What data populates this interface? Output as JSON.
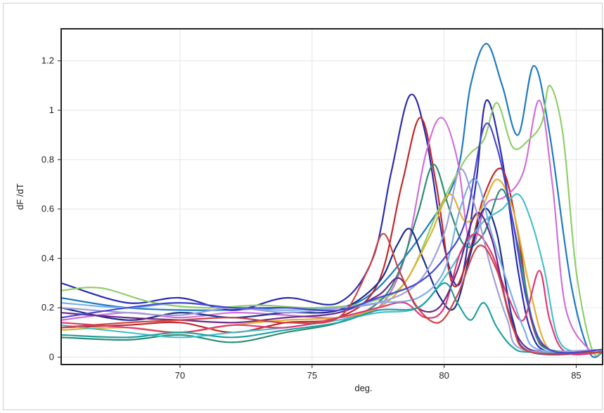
{
  "chart_data": {
    "type": "line",
    "title": "",
    "xlabel": "deg.",
    "ylabel": "dF /dT",
    "xlim": [
      65.5,
      86
    ],
    "ylim": [
      -0.03,
      1.33
    ],
    "xticks": [
      70,
      75,
      80,
      85
    ],
    "yticks": [
      0,
      0.2,
      0.4,
      0.6,
      0.8,
      1,
      1.2
    ],
    "ytick_labels": [
      "0",
      "0.2",
      "0.4",
      "0.6",
      "0.8",
      "1",
      "1.2"
    ],
    "grid": true,
    "legend": "none",
    "series": [
      {
        "color": "#1e7ac2",
        "values": [
          [
            65.5,
            0.24
          ],
          [
            68,
            0.2
          ],
          [
            71,
            0.19
          ],
          [
            74,
            0.2
          ],
          [
            76,
            0.2
          ],
          [
            77.5,
            0.28
          ],
          [
            79.5,
            0.55
          ],
          [
            80.5,
            0.75
          ],
          [
            81,
            1.1
          ],
          [
            81.6,
            1.27
          ],
          [
            82.2,
            1.1
          ],
          [
            82.8,
            0.9
          ],
          [
            83.4,
            1.18
          ],
          [
            84,
            0.9
          ],
          [
            84.8,
            0.3
          ],
          [
            85.5,
            0.02
          ],
          [
            86,
            0.02
          ]
        ]
      },
      {
        "color": "#2b2bb0",
        "values": [
          [
            65.5,
            0.3
          ],
          [
            68,
            0.22
          ],
          [
            70,
            0.24
          ],
          [
            72,
            0.19
          ],
          [
            74,
            0.24
          ],
          [
            76,
            0.22
          ],
          [
            77.3,
            0.4
          ],
          [
            78,
            0.75
          ],
          [
            78.7,
            1.06
          ],
          [
            79.3,
            0.9
          ],
          [
            80,
            0.45
          ],
          [
            80.6,
            0.3
          ],
          [
            81.2,
            0.7
          ],
          [
            81.6,
            1.04
          ],
          [
            82.2,
            0.8
          ],
          [
            82.8,
            0.35
          ],
          [
            83.3,
            0.1
          ],
          [
            84,
            0.02
          ],
          [
            86,
            0.02
          ]
        ]
      },
      {
        "color": "#c0282a",
        "values": [
          [
            65.5,
            0.12
          ],
          [
            68,
            0.13
          ],
          [
            70,
            0.14
          ],
          [
            72,
            0.1
          ],
          [
            74,
            0.14
          ],
          [
            76,
            0.16
          ],
          [
            77.5,
            0.3
          ],
          [
            78.4,
            0.7
          ],
          [
            79.1,
            0.97
          ],
          [
            79.7,
            0.7
          ],
          [
            80.3,
            0.3
          ],
          [
            80.9,
            0.4
          ],
          [
            81.5,
            0.65
          ],
          [
            82.2,
            0.76
          ],
          [
            82.8,
            0.5
          ],
          [
            83.3,
            0.15
          ],
          [
            84,
            0.03
          ],
          [
            86,
            0.03
          ]
        ]
      },
      {
        "color": "#d070d8",
        "values": [
          [
            65.5,
            0.15
          ],
          [
            68,
            0.18
          ],
          [
            70,
            0.16
          ],
          [
            72,
            0.18
          ],
          [
            74,
            0.17
          ],
          [
            76,
            0.16
          ],
          [
            77.5,
            0.2
          ],
          [
            78.5,
            0.4
          ],
          [
            79.3,
            0.82
          ],
          [
            79.9,
            0.97
          ],
          [
            80.5,
            0.8
          ],
          [
            81,
            0.45
          ],
          [
            81.6,
            0.62
          ],
          [
            82.3,
            0.65
          ],
          [
            83,
            0.75
          ],
          [
            83.6,
            1.04
          ],
          [
            84.1,
            0.7
          ],
          [
            84.6,
            0.2
          ],
          [
            85.5,
            0.03
          ],
          [
            86,
            0.03
          ]
        ]
      },
      {
        "color": "#8fcf6a",
        "values": [
          [
            65.5,
            0.27
          ],
          [
            67,
            0.28
          ],
          [
            69,
            0.22
          ],
          [
            71,
            0.2
          ],
          [
            73,
            0.21
          ],
          [
            75,
            0.2
          ],
          [
            77,
            0.22
          ],
          [
            78.5,
            0.3
          ],
          [
            79.8,
            0.6
          ],
          [
            80.8,
            0.8
          ],
          [
            81.5,
            0.88
          ],
          [
            82,
            1.03
          ],
          [
            82.6,
            0.85
          ],
          [
            83.2,
            0.88
          ],
          [
            83.7,
            0.95
          ],
          [
            84,
            1.1
          ],
          [
            84.5,
            0.9
          ],
          [
            85,
            0.35
          ],
          [
            85.6,
            0.03
          ],
          [
            86,
            0.03
          ]
        ]
      },
      {
        "color": "#2c8c74",
        "values": [
          [
            65.5,
            0.08
          ],
          [
            68,
            0.07
          ],
          [
            70,
            0.09
          ],
          [
            72,
            0.06
          ],
          [
            74,
            0.1
          ],
          [
            76,
            0.14
          ],
          [
            77.5,
            0.22
          ],
          [
            78.3,
            0.35
          ],
          [
            79,
            0.58
          ],
          [
            79.6,
            0.78
          ],
          [
            80.2,
            0.6
          ],
          [
            80.8,
            0.45
          ],
          [
            81.5,
            0.5
          ],
          [
            82.2,
            0.68
          ],
          [
            82.8,
            0.45
          ],
          [
            83.4,
            0.12
          ],
          [
            84,
            0.03
          ],
          [
            86,
            0.03
          ]
        ]
      },
      {
        "color": "#1a2f8a",
        "values": [
          [
            65.5,
            0.2
          ],
          [
            68,
            0.15
          ],
          [
            70,
            0.18
          ],
          [
            72,
            0.16
          ],
          [
            74,
            0.18
          ],
          [
            76,
            0.19
          ],
          [
            77.5,
            0.3
          ],
          [
            78.2,
            0.45
          ],
          [
            78.7,
            0.52
          ],
          [
            79.2,
            0.4
          ],
          [
            79.8,
            0.25
          ],
          [
            80.4,
            0.2
          ],
          [
            81,
            0.42
          ],
          [
            81.5,
            0.6
          ],
          [
            82,
            0.5
          ],
          [
            82.6,
            0.15
          ],
          [
            83.3,
            0.02
          ],
          [
            86,
            0.02
          ]
        ]
      },
      {
        "color": "#e0b030",
        "values": [
          [
            65.5,
            0.11
          ],
          [
            68,
            0.12
          ],
          [
            70,
            0.1
          ],
          [
            72,
            0.13
          ],
          [
            74,
            0.15
          ],
          [
            76,
            0.16
          ],
          [
            77.5,
            0.2
          ],
          [
            78.5,
            0.3
          ],
          [
            79.5,
            0.5
          ],
          [
            80.2,
            0.66
          ],
          [
            80.8,
            0.55
          ],
          [
            81.4,
            0.6
          ],
          [
            82,
            0.72
          ],
          [
            82.6,
            0.6
          ],
          [
            83.2,
            0.3
          ],
          [
            83.8,
            0.06
          ],
          [
            84.5,
            0.02
          ],
          [
            86,
            0.02
          ]
        ]
      },
      {
        "color": "#48c0c8",
        "values": [
          [
            65.5,
            0.13
          ],
          [
            68,
            0.1
          ],
          [
            70,
            0.08
          ],
          [
            72,
            0.1
          ],
          [
            74,
            0.12
          ],
          [
            76,
            0.15
          ],
          [
            77.5,
            0.18
          ],
          [
            79,
            0.2
          ],
          [
            80,
            0.32
          ],
          [
            80.8,
            0.45
          ],
          [
            81.5,
            0.55
          ],
          [
            82.2,
            0.6
          ],
          [
            82.8,
            0.66
          ],
          [
            83.3,
            0.55
          ],
          [
            83.8,
            0.35
          ],
          [
            84.3,
            0.08
          ],
          [
            85,
            0.02
          ],
          [
            86,
            0.02
          ]
        ]
      },
      {
        "color": "#e03878",
        "values": [
          [
            65.5,
            0.14
          ],
          [
            68,
            0.12
          ],
          [
            70,
            0.1
          ],
          [
            72,
            0.13
          ],
          [
            74,
            0.12
          ],
          [
            76,
            0.16
          ],
          [
            77.5,
            0.2
          ],
          [
            78.5,
            0.22
          ],
          [
            79.3,
            0.16
          ],
          [
            80,
            0.2
          ],
          [
            80.6,
            0.42
          ],
          [
            81.2,
            0.5
          ],
          [
            81.8,
            0.42
          ],
          [
            82.4,
            0.25
          ],
          [
            83,
            0.15
          ],
          [
            83.6,
            0.35
          ],
          [
            84,
            0.15
          ],
          [
            84.6,
            0.02
          ],
          [
            86,
            0.02
          ]
        ]
      },
      {
        "color": "#6a2888",
        "values": [
          [
            65.5,
            0.18
          ],
          [
            68,
            0.16
          ],
          [
            70,
            0.15
          ],
          [
            72,
            0.14
          ],
          [
            74,
            0.16
          ],
          [
            76,
            0.18
          ],
          [
            77.5,
            0.25
          ],
          [
            78.3,
            0.32
          ],
          [
            79,
            0.2
          ],
          [
            79.8,
            0.2
          ],
          [
            80.5,
            0.35
          ],
          [
            81.2,
            0.58
          ],
          [
            81.8,
            0.48
          ],
          [
            82.4,
            0.2
          ],
          [
            83,
            0.05
          ],
          [
            84,
            0.02
          ],
          [
            86,
            0.02
          ]
        ]
      },
      {
        "color": "#7ab0e8",
        "values": [
          [
            65.5,
            0.22
          ],
          [
            68,
            0.2
          ],
          [
            70,
            0.22
          ],
          [
            72,
            0.2
          ],
          [
            74,
            0.19
          ],
          [
            76,
            0.2
          ],
          [
            77.5,
            0.22
          ],
          [
            79,
            0.24
          ],
          [
            80,
            0.35
          ],
          [
            80.6,
            0.6
          ],
          [
            81.2,
            0.72
          ],
          [
            81.8,
            0.5
          ],
          [
            82.4,
            0.3
          ],
          [
            83,
            0.12
          ],
          [
            83.6,
            0.03
          ],
          [
            86,
            0.03
          ]
        ]
      },
      {
        "color": "#20a0a0",
        "values": [
          [
            65.5,
            0.09
          ],
          [
            68,
            0.08
          ],
          [
            70,
            0.1
          ],
          [
            72,
            0.08
          ],
          [
            74,
            0.11
          ],
          [
            76,
            0.14
          ],
          [
            77.5,
            0.19
          ],
          [
            79,
            0.2
          ],
          [
            80,
            0.3
          ],
          [
            80.5,
            0.22
          ],
          [
            81,
            0.15
          ],
          [
            81.5,
            0.22
          ],
          [
            82,
            0.12
          ],
          [
            82.6,
            0.04
          ],
          [
            83.3,
            0.02
          ],
          [
            86,
            0.02
          ]
        ]
      },
      {
        "color": "#a0a0d8",
        "values": [
          [
            65.5,
            0.2
          ],
          [
            68,
            0.18
          ],
          [
            70,
            0.17
          ],
          [
            72,
            0.2
          ],
          [
            74,
            0.18
          ],
          [
            76,
            0.2
          ],
          [
            77.5,
            0.22
          ],
          [
            79,
            0.3
          ],
          [
            80,
            0.5
          ],
          [
            80.6,
            0.76
          ],
          [
            81.2,
            0.6
          ],
          [
            81.8,
            0.35
          ],
          [
            82.4,
            0.15
          ],
          [
            83,
            0.03
          ],
          [
            86,
            0.03
          ]
        ]
      },
      {
        "color": "#cc4444",
        "values": [
          [
            65.5,
            0.12
          ],
          [
            68,
            0.14
          ],
          [
            70,
            0.15
          ],
          [
            72,
            0.16
          ],
          [
            74,
            0.14
          ],
          [
            76,
            0.16
          ],
          [
            77.1,
            0.35
          ],
          [
            77.7,
            0.5
          ],
          [
            78.3,
            0.35
          ],
          [
            79,
            0.2
          ],
          [
            79.8,
            0.14
          ],
          [
            80.5,
            0.25
          ],
          [
            81.3,
            0.45
          ],
          [
            82,
            0.35
          ],
          [
            82.6,
            0.12
          ],
          [
            83.3,
            0.02
          ],
          [
            86,
            0.02
          ]
        ]
      },
      {
        "color": "#4848d0",
        "values": [
          [
            65.5,
            0.16
          ],
          [
            68,
            0.2
          ],
          [
            70,
            0.22
          ],
          [
            72,
            0.2
          ],
          [
            74,
            0.2
          ],
          [
            76,
            0.19
          ],
          [
            77.5,
            0.24
          ],
          [
            79,
            0.3
          ],
          [
            80,
            0.4
          ],
          [
            80.8,
            0.55
          ],
          [
            81.5,
            0.93
          ],
          [
            82,
            0.85
          ],
          [
            82.6,
            0.55
          ],
          [
            83.2,
            0.2
          ],
          [
            84,
            0.03
          ],
          [
            86,
            0.03
          ]
        ]
      }
    ]
  }
}
